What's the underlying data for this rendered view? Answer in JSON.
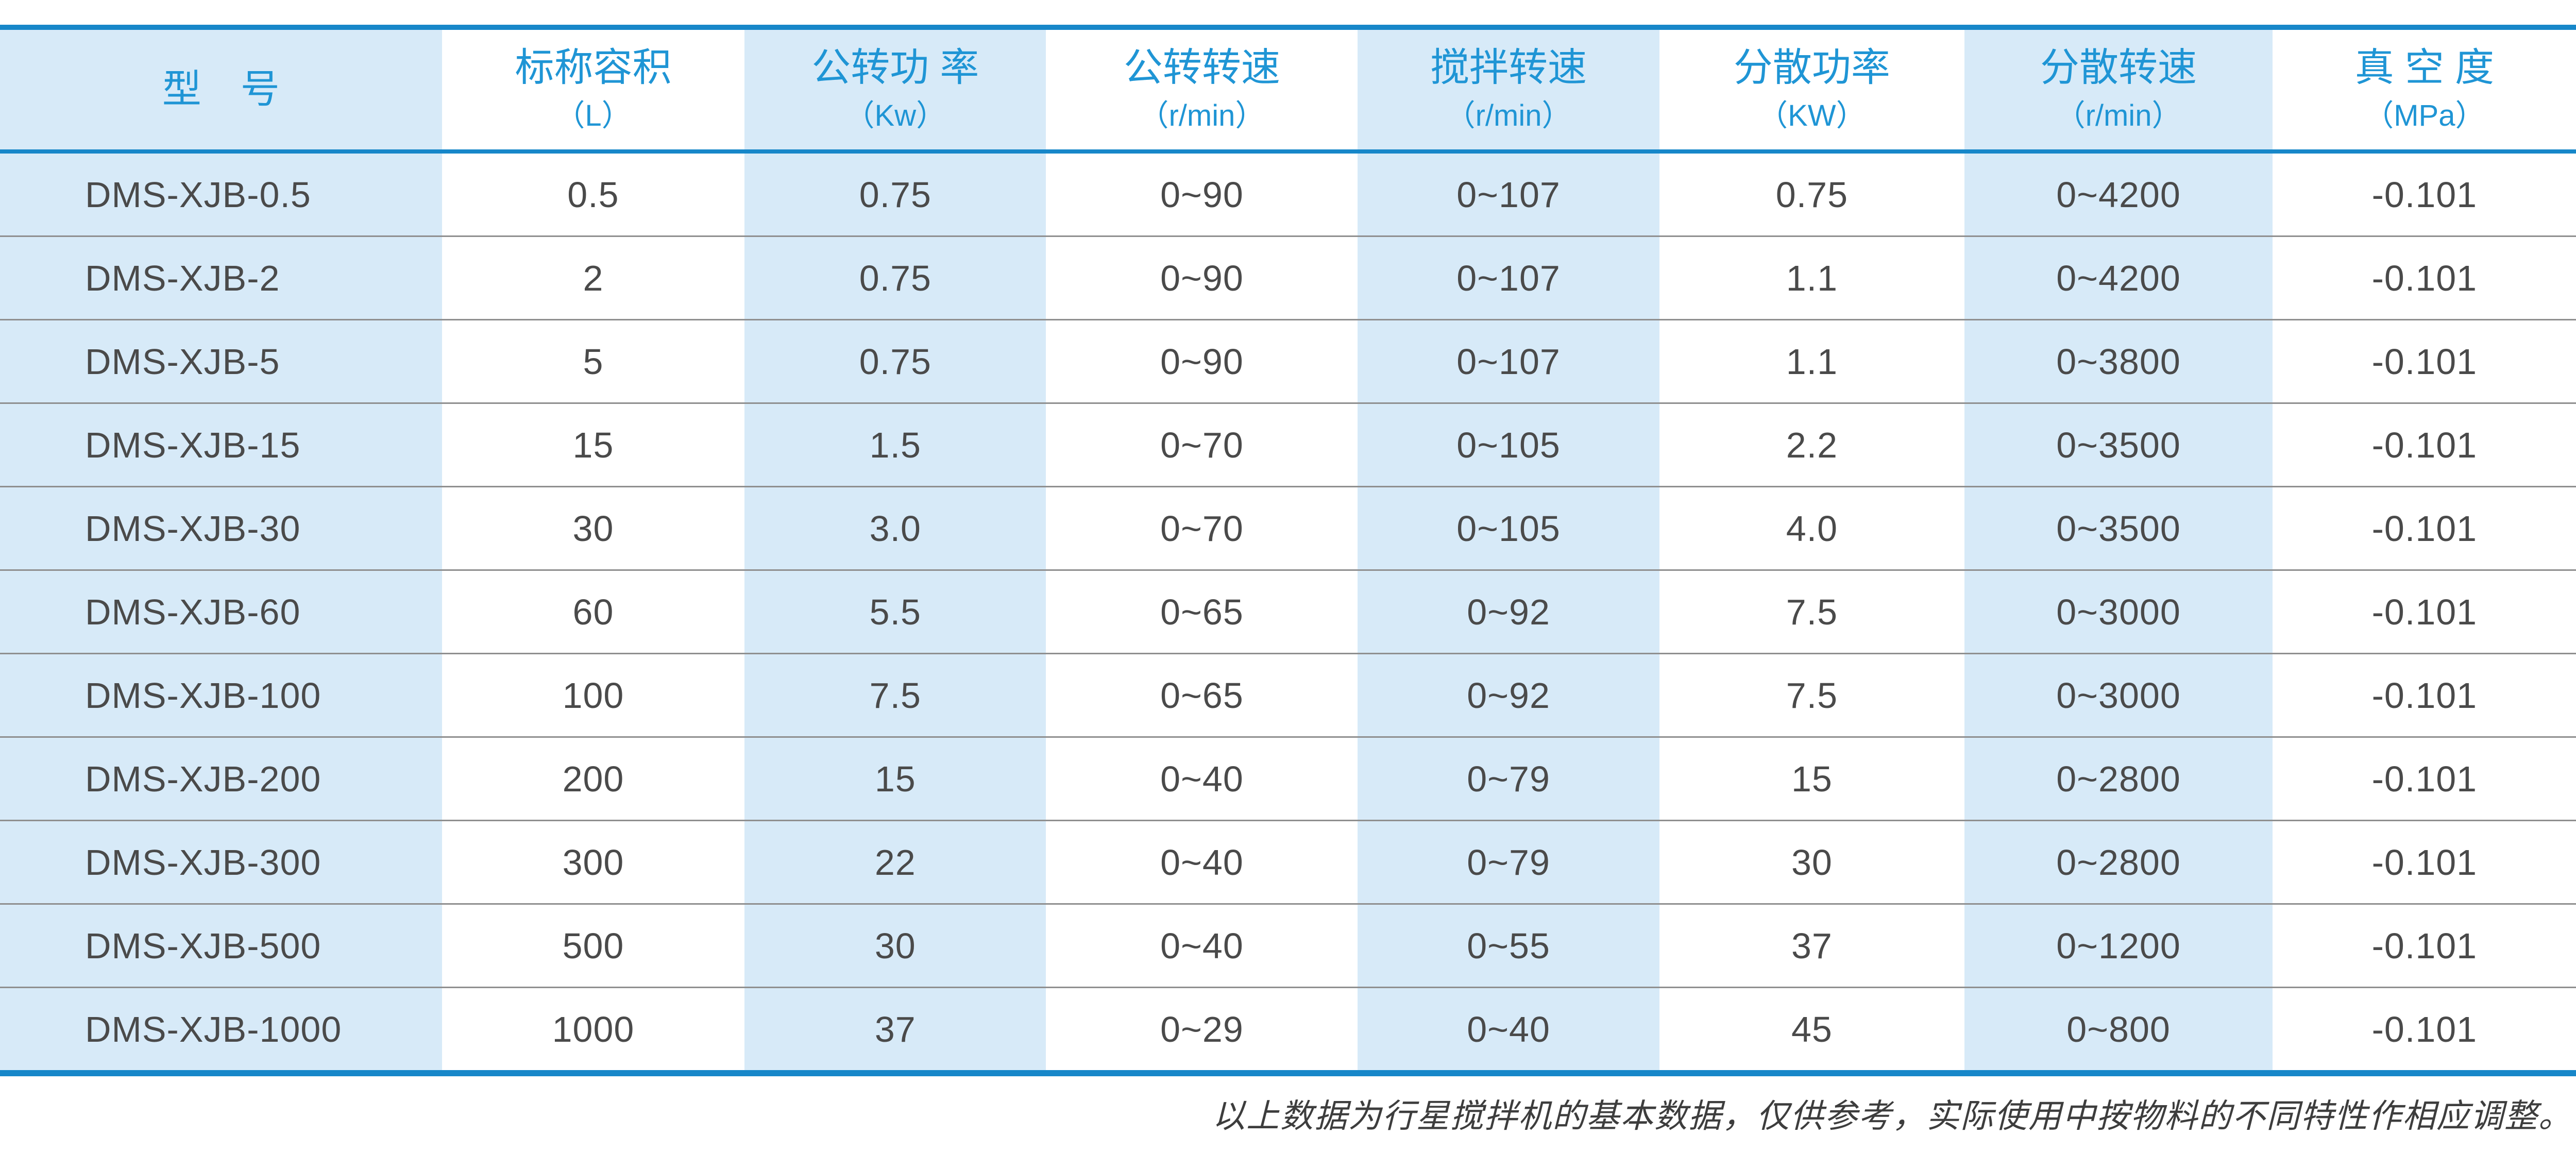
{
  "colors": {
    "accent_blue": "#1787c9",
    "header_text_blue": "#1f95d5",
    "stripe_blue": "#d7eaf8",
    "body_text": "#4a4a4a",
    "row_divider_gray": "#8f8f8f",
    "footer_text": "#3d3d3d"
  },
  "table": {
    "headers": [
      {
        "label": "型　号",
        "unit": ""
      },
      {
        "label": "标称容积",
        "unit": "（L）"
      },
      {
        "label": "公转功 率",
        "unit": "（Kw）"
      },
      {
        "label": "公转转速",
        "unit": "（r/min）"
      },
      {
        "label": "搅拌转速",
        "unit": "（r/min）"
      },
      {
        "label": "分散功率",
        "unit": "（KW）"
      },
      {
        "label": "分散转速",
        "unit": "（r/min）"
      },
      {
        "label": "真 空 度",
        "unit": "（MPa）"
      }
    ],
    "rows": [
      {
        "model": "DMS-XJB-0.5",
        "cells": [
          "0.5",
          "0.75",
          "0~90",
          "0~107",
          "0.75",
          "0~4200",
          "-0.101"
        ]
      },
      {
        "model": "DMS-XJB-2",
        "cells": [
          "2",
          "0.75",
          "0~90",
          "0~107",
          "1.1",
          "0~4200",
          "-0.101"
        ]
      },
      {
        "model": "DMS-XJB-5",
        "cells": [
          "5",
          "0.75",
          "0~90",
          "0~107",
          "1.1",
          "0~3800",
          "-0.101"
        ]
      },
      {
        "model": "DMS-XJB-15",
        "cells": [
          "15",
          "1.5",
          "0~70",
          "0~105",
          "2.2",
          "0~3500",
          "-0.101"
        ]
      },
      {
        "model": "DMS-XJB-30",
        "cells": [
          "30",
          "3.0",
          "0~70",
          "0~105",
          "4.0",
          "0~3500",
          "-0.101"
        ]
      },
      {
        "model": "DMS-XJB-60",
        "cells": [
          "60",
          "5.5",
          "0~65",
          "0~92",
          "7.5",
          "0~3000",
          "-0.101"
        ]
      },
      {
        "model": "DMS-XJB-100",
        "cells": [
          "100",
          "7.5",
          "0~65",
          "0~92",
          "7.5",
          "0~3000",
          "-0.101"
        ]
      },
      {
        "model": "DMS-XJB-200",
        "cells": [
          "200",
          "15",
          "0~40",
          "0~79",
          "15",
          "0~2800",
          "-0.101"
        ]
      },
      {
        "model": "DMS-XJB-300",
        "cells": [
          "300",
          "22",
          "0~40",
          "0~79",
          "30",
          "0~2800",
          "-0.101"
        ]
      },
      {
        "model": "DMS-XJB-500",
        "cells": [
          "500",
          "30",
          "0~40",
          "0~55",
          "37",
          "0~1200",
          "-0.101"
        ]
      },
      {
        "model": "DMS-XJB-1000",
        "cells": [
          "1000",
          "37",
          "0~29",
          "0~40",
          "45",
          "0~800",
          "-0.101"
        ]
      }
    ]
  },
  "footer": {
    "note": "以上数据为行星搅拌机的基本数据，仅供参考，实际使用中按物料的不同特性作相应调整。"
  }
}
